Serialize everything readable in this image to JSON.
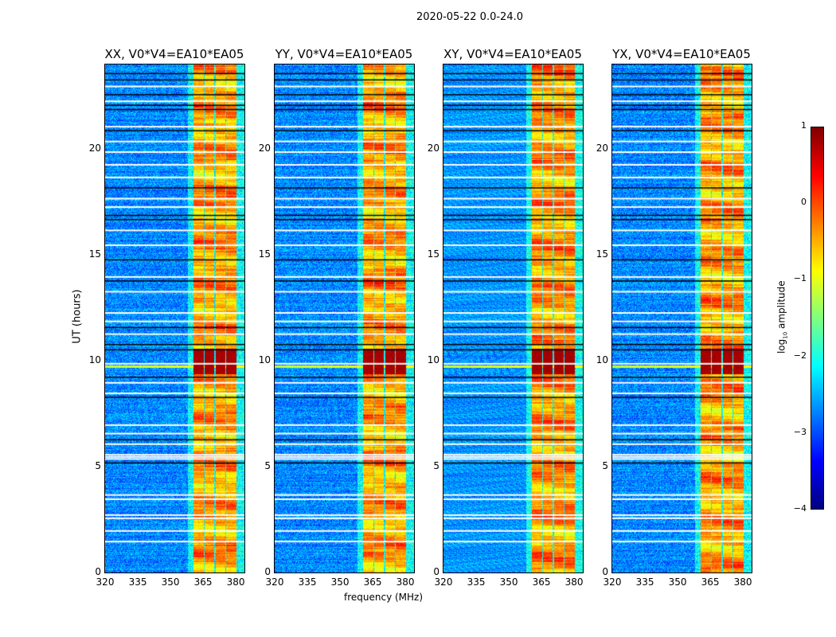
{
  "chart_data": {
    "type": "heatmap",
    "title": "2020-05-22 0.0-24.0",
    "xlabel": "frequency (MHz)",
    "ylabel": "UT (hours)",
    "xlim": [
      320,
      384
    ],
    "ylim": [
      0,
      24
    ],
    "xticks": [
      "320",
      "335",
      "350",
      "365",
      "380"
    ],
    "xtick_values": [
      320,
      335,
      350,
      365,
      380
    ],
    "yticks": [
      "0",
      "5",
      "10",
      "15",
      "20"
    ],
    "ytick_values": [
      0,
      5,
      10,
      15,
      20
    ],
    "panels": [
      {
        "title": "XX, V0*V4=EA10*EA05",
        "seed": 11
      },
      {
        "title": "YY, V0*V4=EA10*EA05",
        "seed": 23
      },
      {
        "title": "XY, V0*V4=EA10*EA05",
        "seed": 37
      },
      {
        "title": "YX, V0*V4=EA10*EA05",
        "seed": 51
      }
    ],
    "background_level": -2.7,
    "rfi_subbands_mhz": [
      [
        360.5,
        365
      ],
      [
        365.5,
        370
      ],
      [
        370.5,
        375
      ],
      [
        375.5,
        380
      ]
    ],
    "rfi_level": -0.4,
    "strong_rfi_hours": [
      9.4,
      10.6
    ],
    "strong_rfi_level": 0.8,
    "horizontal_rfi_hour": 9.75,
    "flagged_hours_white": [
      1.5,
      2.0,
      2.6,
      2.75,
      3.5,
      3.7,
      5.4,
      5.5,
      5.6,
      6.1,
      6.6,
      7.0,
      8.5,
      9.0,
      9.9,
      11.3,
      11.9,
      12.3,
      13.3,
      14.0,
      15.5,
      16.2,
      17.3,
      17.7,
      18.7,
      19.3,
      19.9,
      20.4,
      21.1,
      22.3,
      23.0
    ],
    "flagged_hours_black": [
      5.2,
      6.3,
      8.3,
      9.25,
      10.55,
      10.8,
      11.6,
      13.8,
      14.8,
      16.7,
      16.9,
      18.2,
      20.9,
      21.9,
      22.1,
      22.6,
      23.3,
      23.6
    ],
    "colorbar": {
      "label": "log10 amplitude",
      "label_main": "log",
      "label_sub": "10",
      "label_rest": " amplitude",
      "range": [
        -4,
        1
      ],
      "ticks": [
        "1",
        "0",
        "−1",
        "−2",
        "−3",
        "−4"
      ],
      "tick_values": [
        1,
        0,
        -1,
        -2,
        -3,
        -4
      ],
      "colormap": "jet"
    }
  }
}
